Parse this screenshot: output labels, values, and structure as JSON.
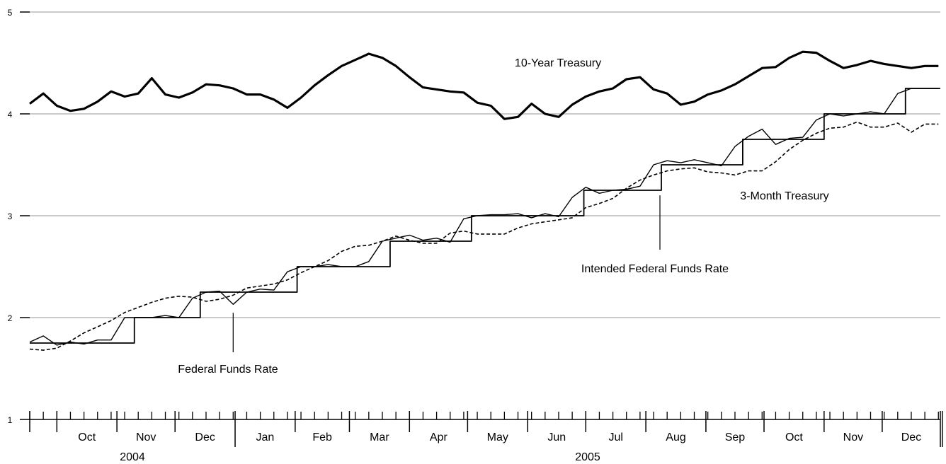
{
  "chart_data": {
    "type": "line",
    "title": "",
    "xlabel": "",
    "ylabel": "",
    "ylim": [
      1,
      5
    ],
    "yticks": [
      "1",
      "2",
      "3",
      "4",
      "5"
    ],
    "grid": "horizontal",
    "x_range": [
      "2004-09-17",
      "2005-12-31"
    ],
    "months": [
      "Oct",
      "Nov",
      "Dec",
      "Jan",
      "Feb",
      "Mar",
      "Apr",
      "May",
      "Jun",
      "Jul",
      "Aug",
      "Sep",
      "Oct",
      "Nov",
      "Dec"
    ],
    "years": [
      "2004",
      "2005"
    ],
    "series": [
      {
        "name": "10-Year Treasury",
        "style": "thick",
        "x": [
          "2004-09-17",
          "2004-09-24",
          "2004-10-01",
          "2004-10-08",
          "2004-10-15",
          "2004-10-22",
          "2004-10-29",
          "2004-11-05",
          "2004-11-12",
          "2004-11-19",
          "2004-11-26",
          "2004-12-03",
          "2004-12-10",
          "2004-12-17",
          "2004-12-24",
          "2004-12-31",
          "2005-01-07",
          "2005-01-14",
          "2005-01-21",
          "2005-01-28",
          "2005-02-04",
          "2005-02-11",
          "2005-02-18",
          "2005-02-25",
          "2005-03-04",
          "2005-03-11",
          "2005-03-18",
          "2005-03-25",
          "2005-04-01",
          "2005-04-08",
          "2005-04-15",
          "2005-04-22",
          "2005-04-29",
          "2005-05-06",
          "2005-05-13",
          "2005-05-20",
          "2005-05-27",
          "2005-06-03",
          "2005-06-10",
          "2005-06-17",
          "2005-06-24",
          "2005-07-01",
          "2005-07-08",
          "2005-07-15",
          "2005-07-22",
          "2005-07-29",
          "2005-08-05",
          "2005-08-12",
          "2005-08-19",
          "2005-08-26",
          "2005-09-02",
          "2005-09-09",
          "2005-09-16",
          "2005-09-23",
          "2005-09-30",
          "2005-10-07",
          "2005-10-14",
          "2005-10-21",
          "2005-10-28",
          "2005-11-04",
          "2005-11-11",
          "2005-11-18",
          "2005-11-25",
          "2005-12-02",
          "2005-12-09",
          "2005-12-16",
          "2005-12-23",
          "2005-12-30"
        ],
        "values": [
          4.1,
          4.2,
          4.08,
          4.03,
          4.05,
          4.12,
          4.22,
          4.17,
          4.2,
          4.35,
          4.19,
          4.16,
          4.21,
          4.29,
          4.28,
          4.25,
          4.19,
          4.19,
          4.14,
          4.06,
          4.16,
          4.28,
          4.38,
          4.47,
          4.53,
          4.59,
          4.55,
          4.47,
          4.36,
          4.26,
          4.24,
          4.22,
          4.21,
          4.11,
          4.08,
          3.95,
          3.97,
          4.1,
          4.0,
          3.97,
          4.09,
          4.17,
          4.22,
          4.25,
          4.34,
          4.36,
          4.24,
          4.2,
          4.09,
          4.12,
          4.19,
          4.23,
          4.29,
          4.37,
          4.45,
          4.46,
          4.55,
          4.61,
          4.6,
          4.52,
          4.45,
          4.48,
          4.52,
          4.49,
          4.47,
          4.45,
          4.47,
          4.47
        ]
      },
      {
        "name": "Federal Funds Rate",
        "style": "thin",
        "x": [
          "2004-09-17",
          "2004-09-24",
          "2004-10-01",
          "2004-10-08",
          "2004-10-15",
          "2004-10-22",
          "2004-10-29",
          "2004-11-05",
          "2004-11-12",
          "2004-11-19",
          "2004-11-26",
          "2004-12-03",
          "2004-12-10",
          "2004-12-17",
          "2004-12-24",
          "2004-12-31",
          "2005-01-07",
          "2005-01-14",
          "2005-01-21",
          "2005-01-28",
          "2005-02-04",
          "2005-02-11",
          "2005-02-18",
          "2005-02-25",
          "2005-03-04",
          "2005-03-11",
          "2005-03-18",
          "2005-03-25",
          "2005-04-01",
          "2005-04-08",
          "2005-04-15",
          "2005-04-22",
          "2005-04-29",
          "2005-05-06",
          "2005-05-13",
          "2005-05-20",
          "2005-05-27",
          "2005-06-03",
          "2005-06-10",
          "2005-06-17",
          "2005-06-24",
          "2005-07-01",
          "2005-07-08",
          "2005-07-15",
          "2005-07-22",
          "2005-07-29",
          "2005-08-05",
          "2005-08-12",
          "2005-08-19",
          "2005-08-26",
          "2005-09-02",
          "2005-09-09",
          "2005-09-16",
          "2005-09-23",
          "2005-09-30",
          "2005-10-07",
          "2005-10-14",
          "2005-10-21",
          "2005-10-28",
          "2005-11-04",
          "2005-11-11",
          "2005-11-18",
          "2005-11-25",
          "2005-12-02",
          "2005-12-09",
          "2005-12-16",
          "2005-12-23",
          "2005-12-30"
        ],
        "values": [
          1.76,
          1.82,
          1.73,
          1.76,
          1.74,
          1.78,
          1.78,
          2.0,
          2.0,
          2.0,
          2.02,
          2.0,
          2.19,
          2.25,
          2.26,
          2.13,
          2.25,
          2.28,
          2.27,
          2.45,
          2.5,
          2.5,
          2.52,
          2.5,
          2.5,
          2.55,
          2.75,
          2.78,
          2.81,
          2.76,
          2.78,
          2.74,
          2.97,
          3.0,
          3.01,
          3.01,
          3.02,
          2.98,
          3.02,
          2.99,
          3.18,
          3.28,
          3.22,
          3.25,
          3.26,
          3.29,
          3.5,
          3.54,
          3.52,
          3.55,
          3.52,
          3.49,
          3.68,
          3.78,
          3.85,
          3.7,
          3.76,
          3.77,
          3.94,
          4.0,
          3.98,
          4.0,
          4.02,
          4.0,
          4.2,
          4.25,
          4.25,
          4.25
        ]
      },
      {
        "name": "Intended Federal Funds Rate",
        "style": "step",
        "x": [
          "2004-09-17",
          "2004-11-10",
          "2004-12-14",
          "2005-02-02",
          "2005-03-22",
          "2005-05-03",
          "2005-06-30",
          "2005-08-09",
          "2005-09-20",
          "2005-11-01",
          "2005-12-13",
          "2005-12-31"
        ],
        "values": [
          1.75,
          2.0,
          2.25,
          2.5,
          2.75,
          3.0,
          3.25,
          3.5,
          3.75,
          4.0,
          4.25,
          4.25
        ]
      },
      {
        "name": "3-Month Treasury",
        "style": "dashed",
        "x": [
          "2004-09-17",
          "2004-09-24",
          "2004-10-01",
          "2004-10-08",
          "2004-10-15",
          "2004-10-22",
          "2004-10-29",
          "2004-11-05",
          "2004-11-12",
          "2004-11-19",
          "2004-11-26",
          "2004-12-03",
          "2004-12-10",
          "2004-12-17",
          "2004-12-24",
          "2004-12-31",
          "2005-01-07",
          "2005-01-14",
          "2005-01-21",
          "2005-01-28",
          "2005-02-04",
          "2005-02-11",
          "2005-02-18",
          "2005-02-25",
          "2005-03-04",
          "2005-03-11",
          "2005-03-18",
          "2005-03-25",
          "2005-04-01",
          "2005-04-08",
          "2005-04-15",
          "2005-04-22",
          "2005-04-29",
          "2005-05-06",
          "2005-05-13",
          "2005-05-20",
          "2005-05-27",
          "2005-06-03",
          "2005-06-10",
          "2005-06-17",
          "2005-06-24",
          "2005-07-01",
          "2005-07-08",
          "2005-07-15",
          "2005-07-22",
          "2005-07-29",
          "2005-08-05",
          "2005-08-12",
          "2005-08-19",
          "2005-08-26",
          "2005-09-02",
          "2005-09-09",
          "2005-09-16",
          "2005-09-23",
          "2005-09-30",
          "2005-10-07",
          "2005-10-14",
          "2005-10-21",
          "2005-10-28",
          "2005-11-04",
          "2005-11-11",
          "2005-11-18",
          "2005-11-25",
          "2005-12-02",
          "2005-12-09",
          "2005-12-16",
          "2005-12-23",
          "2005-12-30"
        ],
        "values": [
          1.69,
          1.68,
          1.7,
          1.77,
          1.85,
          1.91,
          1.97,
          2.05,
          2.1,
          2.15,
          2.19,
          2.21,
          2.2,
          2.16,
          2.18,
          2.22,
          2.29,
          2.31,
          2.33,
          2.37,
          2.44,
          2.5,
          2.56,
          2.65,
          2.7,
          2.71,
          2.75,
          2.8,
          2.76,
          2.73,
          2.73,
          2.83,
          2.85,
          2.82,
          2.82,
          2.82,
          2.88,
          2.92,
          2.94,
          2.96,
          2.98,
          3.08,
          3.12,
          3.17,
          3.27,
          3.35,
          3.4,
          3.44,
          3.46,
          3.47,
          3.43,
          3.42,
          3.4,
          3.44,
          3.44,
          3.53,
          3.65,
          3.74,
          3.81,
          3.86,
          3.87,
          3.92,
          3.87,
          3.87,
          3.91,
          3.82,
          3.9,
          3.9
        ]
      }
    ],
    "annotations": [
      {
        "text": "10-Year Treasury",
        "series": "10-Year Treasury"
      },
      {
        "text": "3-Month Treasury",
        "series": "3-Month Treasury"
      },
      {
        "text": "Federal Funds Rate",
        "series": "Federal Funds Rate",
        "pointer_date": "2004-12-31",
        "pointer_value": 2.13
      },
      {
        "text": "Intended Federal Funds Rate",
        "series": "Intended Federal Funds Rate",
        "pointer_date": "2005-08-09",
        "pointer_value": 3.2
      }
    ]
  }
}
